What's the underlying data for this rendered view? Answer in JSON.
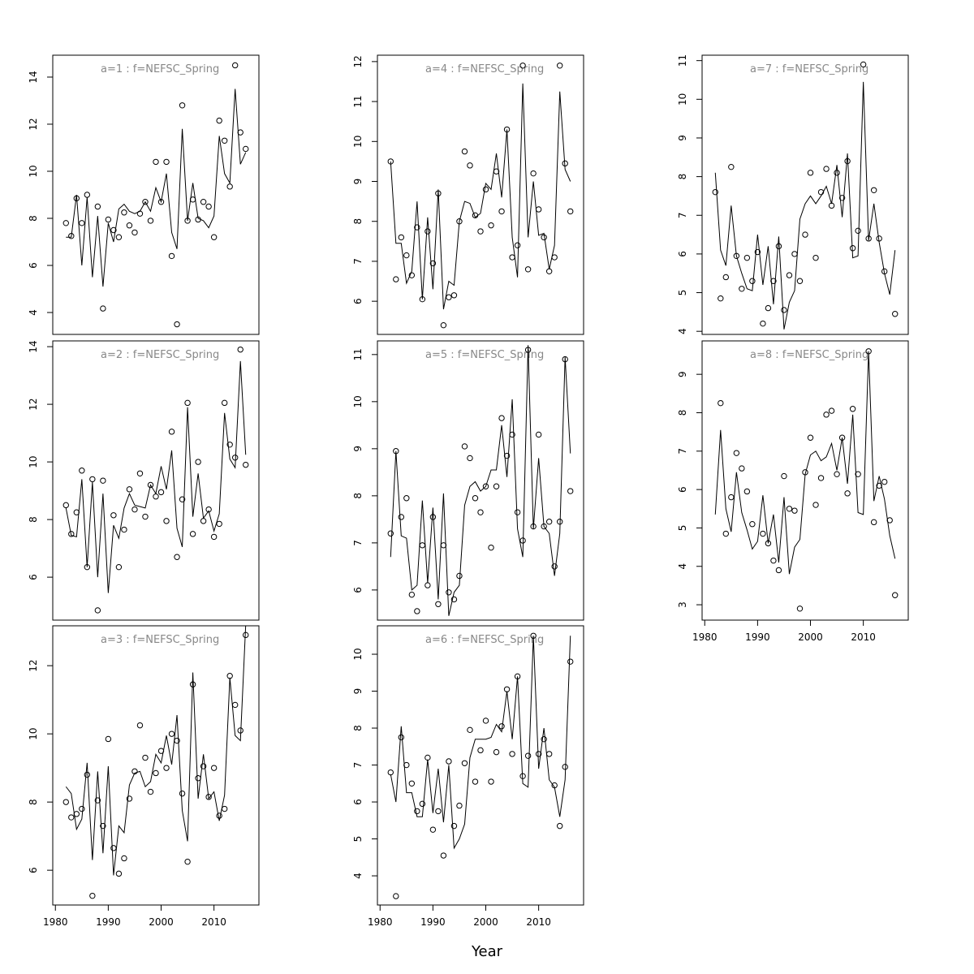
{
  "xlabel": "Year",
  "chart_data": [
    {
      "type": "line",
      "title": "a=1 : f=NEFSC_Spring",
      "x": [
        1982,
        1983,
        1984,
        1985,
        1986,
        1987,
        1988,
        1989,
        1990,
        1991,
        1992,
        1993,
        1994,
        1995,
        1996,
        1997,
        1998,
        1999,
        2000,
        2001,
        2002,
        2003,
        2004,
        2005,
        2006,
        2007,
        2008,
        2009,
        2010,
        2011,
        2012,
        2013,
        2014,
        2015,
        2016
      ],
      "xlim": [
        1979.5,
        2018.5
      ],
      "ylim": [
        3.07,
        14.93
      ],
      "yticks": [
        4,
        6,
        8,
        10,
        12,
        14
      ],
      "series": [
        {
          "mode": "points",
          "color": "#000000",
          "values": [
            7.8,
            7.25,
            8.85,
            7.8,
            9.0,
            null,
            8.5,
            4.17,
            7.95,
            7.5,
            7.2,
            8.25,
            7.7,
            7.4,
            8.2,
            8.7,
            7.9,
            10.4,
            8.7,
            10.4,
            6.4,
            3.5,
            12.8,
            7.9,
            8.8,
            7.95,
            8.7,
            8.5,
            7.2,
            12.15,
            11.3,
            9.35,
            14.5,
            11.65,
            10.95
          ]
        },
        {
          "mode": "line",
          "color": "#000000",
          "values": [
            7.2,
            7.2,
            9.0,
            6.0,
            8.9,
            5.5,
            8.1,
            5.1,
            7.8,
            7.0,
            8.4,
            8.6,
            8.3,
            8.2,
            8.3,
            8.7,
            8.3,
            9.3,
            8.7,
            9.9,
            7.4,
            6.7,
            11.8,
            7.9,
            9.5,
            8.0,
            7.9,
            7.6,
            8.1,
            11.5,
            9.9,
            9.5,
            13.5,
            10.3,
            10.8
          ]
        }
      ]
    },
    {
      "type": "line",
      "title": "a=2 : f=NEFSC_Spring",
      "x": [
        1982,
        1983,
        1984,
        1985,
        1986,
        1987,
        1988,
        1989,
        1990,
        1991,
        1992,
        1993,
        1994,
        1995,
        1996,
        1997,
        1998,
        1999,
        2000,
        2001,
        2002,
        2003,
        2004,
        2005,
        2006,
        2007,
        2008,
        2009,
        2010,
        2011,
        2012,
        2013,
        2014,
        2015,
        2016
      ],
      "xlim": [
        1979.5,
        2018.5
      ],
      "ylim": [
        4.51,
        14.2
      ],
      "yticks": [
        6,
        8,
        10,
        12,
        14
      ],
      "series": [
        {
          "mode": "points",
          "color": "#000000",
          "values": [
            8.5,
            7.5,
            8.25,
            9.7,
            6.35,
            9.4,
            4.85,
            9.35,
            null,
            8.15,
            6.35,
            7.65,
            9.05,
            8.35,
            9.6,
            8.1,
            9.2,
            8.8,
            8.95,
            7.95,
            11.05,
            6.7,
            8.7,
            12.05,
            7.5,
            10.0,
            7.95,
            8.35,
            7.4,
            7.85,
            12.05,
            10.6,
            10.15,
            13.9,
            9.9
          ]
        },
        {
          "mode": "line",
          "color": "#000000",
          "values": [
            8.4,
            7.45,
            7.4,
            9.4,
            6.35,
            9.3,
            6.0,
            8.9,
            5.45,
            7.8,
            7.35,
            8.4,
            8.9,
            8.5,
            8.45,
            8.4,
            9.2,
            8.9,
            9.85,
            9.05,
            10.4,
            7.7,
            7.05,
            11.9,
            8.1,
            9.6,
            8.05,
            8.3,
            7.6,
            8.2,
            11.7,
            10.1,
            9.8,
            13.5,
            10.25
          ]
        }
      ]
    },
    {
      "type": "line",
      "title": "a=3 : f=NEFSC_Spring",
      "x": [
        1982,
        1983,
        1984,
        1985,
        1986,
        1987,
        1988,
        1989,
        1990,
        1991,
        1992,
        1993,
        1994,
        1995,
        1996,
        1997,
        1998,
        1999,
        2000,
        2001,
        2002,
        2003,
        2004,
        2005,
        2006,
        2007,
        2008,
        2009,
        2010,
        2011,
        2012,
        2013,
        2014,
        2015,
        2016
      ],
      "xlim": [
        1979.5,
        2018.5
      ],
      "ylim": [
        4.98,
        13.17
      ],
      "yticks": [
        6,
        8,
        10,
        12
      ],
      "xticks": [
        1980,
        1990,
        2000,
        2010
      ],
      "series": [
        {
          "mode": "points",
          "color": "#000000",
          "values": [
            8.0,
            7.55,
            7.65,
            7.8,
            8.8,
            5.25,
            8.05,
            7.3,
            9.85,
            6.65,
            5.9,
            6.35,
            8.1,
            8.9,
            10.25,
            9.3,
            8.3,
            8.85,
            9.5,
            9.0,
            10.0,
            9.8,
            8.25,
            6.25,
            11.45,
            8.7,
            9.05,
            8.15,
            9.0,
            7.6,
            7.8,
            11.7,
            10.85,
            10.1,
            12.9
          ]
        },
        {
          "mode": "line",
          "color": "#000000",
          "values": [
            8.45,
            8.25,
            7.2,
            7.5,
            9.15,
            6.3,
            8.9,
            6.5,
            9.05,
            5.85,
            7.3,
            7.1,
            8.5,
            8.85,
            8.9,
            8.45,
            8.6,
            9.4,
            9.15,
            9.95,
            9.1,
            10.55,
            7.75,
            6.85,
            11.8,
            8.1,
            9.4,
            8.1,
            8.3,
            7.45,
            8.2,
            11.65,
            9.95,
            9.8,
            13.2
          ]
        }
      ]
    },
    {
      "type": "line",
      "title": "a=4 : f=NEFSC_Spring",
      "x": [
        1982,
        1983,
        1984,
        1985,
        1986,
        1987,
        1988,
        1989,
        1990,
        1991,
        1992,
        1993,
        1994,
        1995,
        1996,
        1997,
        1998,
        1999,
        2000,
        2001,
        2002,
        2003,
        2004,
        2005,
        2006,
        2007,
        2008,
        2009,
        2010,
        2011,
        2012,
        2013,
        2014,
        2015,
        2016
      ],
      "xlim": [
        1979.5,
        2018.5
      ],
      "ylim": [
        5.17,
        12.16
      ],
      "yticks": [
        6,
        7,
        8,
        9,
        10,
        11,
        12
      ],
      "series": [
        {
          "mode": "points",
          "color": "#000000",
          "values": [
            9.5,
            6.55,
            7.6,
            7.15,
            6.65,
            7.85,
            6.05,
            7.75,
            6.95,
            8.7,
            5.4,
            6.1,
            6.15,
            8.0,
            9.75,
            9.4,
            8.15,
            7.75,
            8.8,
            7.9,
            9.25,
            8.25,
            10.3,
            7.1,
            7.4,
            11.9,
            6.8,
            9.2,
            8.3,
            7.6,
            6.75,
            7.1,
            11.9,
            9.45,
            8.25
          ]
        },
        {
          "mode": "line",
          "color": "#000000",
          "values": [
            9.5,
            7.45,
            7.45,
            6.45,
            6.75,
            8.5,
            6.05,
            8.1,
            6.3,
            8.8,
            5.8,
            6.5,
            6.4,
            8.0,
            8.5,
            8.45,
            8.1,
            8.2,
            8.95,
            8.8,
            9.7,
            8.6,
            10.3,
            7.6,
            6.6,
            11.45,
            7.6,
            9.0,
            7.65,
            7.7,
            6.8,
            7.4,
            11.25,
            9.3,
            9.0
          ]
        }
      ]
    },
    {
      "type": "line",
      "title": "a=5 : f=NEFSC_Spring",
      "x": [
        1982,
        1983,
        1984,
        1985,
        1986,
        1987,
        1988,
        1989,
        1990,
        1991,
        1992,
        1993,
        1994,
        1995,
        1996,
        1997,
        1998,
        1999,
        2000,
        2001,
        2002,
        2003,
        2004,
        2005,
        2006,
        2007,
        2008,
        2009,
        2010,
        2011,
        2012,
        2013,
        2014,
        2015,
        2016
      ],
      "xlim": [
        1979.5,
        2018.5
      ],
      "ylim": [
        5.36,
        11.29
      ],
      "yticks": [
        6,
        7,
        8,
        9,
        10,
        11
      ],
      "series": [
        {
          "mode": "points",
          "color": "#000000",
          "values": [
            7.2,
            8.95,
            7.55,
            7.95,
            5.9,
            5.55,
            6.95,
            6.1,
            7.55,
            5.7,
            6.95,
            5.95,
            5.8,
            6.3,
            9.05,
            8.8,
            7.95,
            7.65,
            8.2,
            6.9,
            8.2,
            9.65,
            8.85,
            9.3,
            7.65,
            7.05,
            11.1,
            7.35,
            9.3,
            7.35,
            7.45,
            6.5,
            7.45,
            10.9,
            8.1
          ]
        },
        {
          "mode": "line",
          "color": "#000000",
          "values": [
            6.7,
            8.95,
            7.15,
            7.1,
            6.0,
            6.1,
            7.9,
            6.15,
            7.75,
            5.8,
            8.05,
            5.45,
            5.95,
            6.1,
            7.8,
            8.2,
            8.3,
            8.1,
            8.2,
            8.55,
            8.55,
            9.5,
            8.4,
            10.05,
            7.3,
            6.7,
            11.2,
            7.3,
            8.8,
            7.35,
            7.2,
            6.3,
            7.2,
            10.95,
            8.9
          ]
        }
      ]
    },
    {
      "type": "line",
      "title": "a=6 : f=NEFSC_Spring",
      "x": [
        1982,
        1983,
        1984,
        1985,
        1986,
        1987,
        1988,
        1989,
        1990,
        1991,
        1992,
        1993,
        1994,
        1995,
        1996,
        1997,
        1998,
        1999,
        2000,
        2001,
        2002,
        2003,
        2004,
        2005,
        2006,
        2007,
        2008,
        2009,
        2010,
        2011,
        2012,
        2013,
        2014,
        2015,
        2016
      ],
      "xlim": [
        1979.5,
        2018.5
      ],
      "ylim": [
        3.21,
        10.77
      ],
      "yticks": [
        4,
        5,
        6,
        7,
        8,
        9,
        10
      ],
      "xticks": [
        1980,
        1990,
        2000,
        2010
      ],
      "series": [
        {
          "mode": "points",
          "color": "#000000",
          "values": [
            6.8,
            3.45,
            7.75,
            7.0,
            6.5,
            5.75,
            5.95,
            7.2,
            5.25,
            5.75,
            4.55,
            7.1,
            5.35,
            5.9,
            7.05,
            7.95,
            6.55,
            7.4,
            8.2,
            6.55,
            7.35,
            8.05,
            9.05,
            7.3,
            9.4,
            6.7,
            7.25,
            10.5,
            7.3,
            7.7,
            7.3,
            6.45,
            5.35,
            6.95,
            9.8
          ]
        },
        {
          "mode": "line",
          "color": "#000000",
          "values": [
            6.75,
            6.0,
            8.05,
            6.25,
            6.25,
            5.6,
            5.6,
            7.15,
            5.7,
            6.9,
            5.45,
            7.0,
            4.75,
            5.0,
            5.4,
            7.2,
            7.7,
            7.7,
            7.7,
            7.75,
            8.1,
            7.9,
            9.0,
            7.7,
            9.4,
            6.5,
            6.4,
            10.5,
            6.9,
            8.0,
            6.6,
            6.4,
            5.6,
            6.6,
            10.5
          ]
        }
      ]
    },
    {
      "type": "line",
      "title": "a=7 : f=NEFSC_Spring",
      "x": [
        1982,
        1983,
        1984,
        1985,
        1986,
        1987,
        1988,
        1989,
        1990,
        1991,
        1992,
        1993,
        1994,
        1995,
        1996,
        1997,
        1998,
        1999,
        2000,
        2001,
        2002,
        2003,
        2004,
        2005,
        2006,
        2007,
        2008,
        2009,
        2010,
        2011,
        2012,
        2013,
        2014,
        2015,
        2016
      ],
      "xlim": [
        1979.5,
        2018.5
      ],
      "ylim": [
        3.92,
        11.14
      ],
      "yticks": [
        4,
        5,
        6,
        7,
        8,
        9,
        10,
        11
      ],
      "series": [
        {
          "mode": "points",
          "color": "#000000",
          "values": [
            7.6,
            4.85,
            5.4,
            8.25,
            5.95,
            5.1,
            5.9,
            5.3,
            6.05,
            4.2,
            4.6,
            5.3,
            6.2,
            4.55,
            5.45,
            6.0,
            5.3,
            6.5,
            8.1,
            5.9,
            7.6,
            8.2,
            7.25,
            8.1,
            7.45,
            8.4,
            6.15,
            6.6,
            10.9,
            6.4,
            7.65,
            6.4,
            5.55,
            null,
            4.45
          ]
        },
        {
          "mode": "line",
          "color": "#000000",
          "values": [
            8.1,
            6.1,
            5.7,
            7.25,
            5.95,
            5.5,
            5.1,
            5.05,
            6.5,
            5.2,
            6.2,
            4.7,
            6.45,
            4.05,
            4.75,
            5.05,
            6.9,
            7.3,
            7.5,
            7.3,
            7.5,
            7.75,
            7.3,
            8.3,
            6.95,
            8.6,
            5.9,
            5.95,
            10.45,
            6.35,
            7.3,
            6.3,
            5.5,
            4.95,
            6.1
          ]
        }
      ]
    },
    {
      "type": "line",
      "title": "a=8 : f=NEFSC_Spring",
      "x": [
        1982,
        1983,
        1984,
        1985,
        1986,
        1987,
        1988,
        1989,
        1990,
        1991,
        1992,
        1993,
        1994,
        1995,
        1996,
        1997,
        1998,
        1999,
        2000,
        2001,
        2002,
        2003,
        2004,
        2005,
        2006,
        2007,
        2008,
        2009,
        2010,
        2011,
        2012,
        2013,
        2014,
        2015,
        2016
      ],
      "xlim": [
        1979.5,
        2018.5
      ],
      "ylim": [
        2.6,
        9.87
      ],
      "yticks": [
        3,
        4,
        5,
        6,
        7,
        8,
        9
      ],
      "xticks": [
        1980,
        1990,
        2000,
        2010
      ],
      "series": [
        {
          "mode": "points",
          "color": "#000000",
          "values": [
            null,
            8.25,
            4.85,
            5.8,
            6.95,
            6.55,
            5.95,
            5.1,
            null,
            4.85,
            4.6,
            4.15,
            3.9,
            6.35,
            5.5,
            5.45,
            2.9,
            6.45,
            7.35,
            5.6,
            6.3,
            7.95,
            8.05,
            6.4,
            7.35,
            5.9,
            8.1,
            6.4,
            null,
            9.6,
            5.15,
            6.1,
            6.2,
            5.2,
            3.25
          ]
        },
        {
          "mode": "line",
          "color": "#000000",
          "values": [
            5.35,
            7.55,
            5.5,
            4.9,
            6.45,
            5.4,
            4.95,
            4.45,
            4.65,
            5.85,
            4.6,
            5.35,
            4.1,
            5.8,
            3.8,
            4.5,
            4.7,
            6.4,
            6.9,
            7.0,
            6.75,
            6.85,
            7.2,
            6.5,
            7.35,
            6.15,
            7.95,
            5.4,
            5.35,
            9.6,
            5.7,
            6.35,
            5.75,
            4.8,
            4.2
          ]
        }
      ]
    }
  ]
}
